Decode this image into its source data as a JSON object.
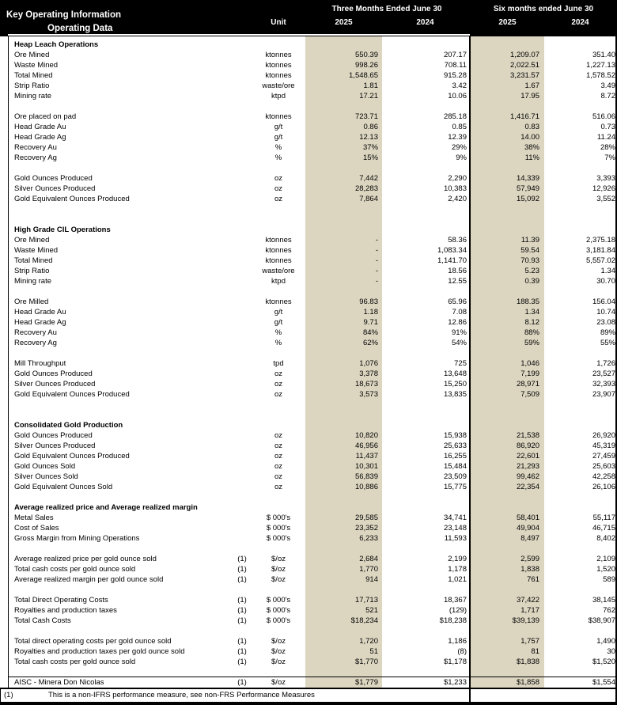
{
  "header": {
    "title": "Key Operating Information",
    "subtitle": "Operating Data",
    "unit_label": "Unit",
    "groups": [
      {
        "label": "Three Months Ended June 30",
        "years": [
          "2025",
          "2024"
        ]
      },
      {
        "label": "Six months ended June 30",
        "years": [
          "2025",
          "2024"
        ]
      }
    ]
  },
  "colors": {
    "header_bg": "#000000",
    "header_text": "#ffffff",
    "band": "#dcd6c1",
    "body_text": "#000000"
  },
  "columns": [
    "3m-2025",
    "3m-2024",
    "6m-2025",
    "6m-2024"
  ],
  "rows": [
    {
      "type": "section",
      "label": "Heap Leach Operations"
    },
    {
      "type": "data",
      "label": "Ore Mined",
      "unit": "ktonnes",
      "values": [
        "550.39",
        "207.17",
        "1,209.07",
        "351.40"
      ]
    },
    {
      "type": "data",
      "label": "Waste Mined",
      "unit": "ktonnes",
      "values": [
        "998.26",
        "708.11",
        "2,022.51",
        "1,227.13"
      ]
    },
    {
      "type": "data",
      "label": "Total Mined",
      "unit": "ktonnes",
      "values": [
        "1,548.65",
        "915.28",
        "3,231.57",
        "1,578.52"
      ]
    },
    {
      "type": "data",
      "label": "Strip Ratio",
      "unit": "waste/ore",
      "values": [
        "1.81",
        "3.42",
        "1.67",
        "3.49"
      ]
    },
    {
      "type": "data",
      "label": "Mining rate",
      "unit": "ktpd",
      "values": [
        "17.21",
        "10.06",
        "17.95",
        "8.72"
      ]
    },
    {
      "type": "blank"
    },
    {
      "type": "data",
      "label": "Ore placed on pad",
      "unit": "ktonnes",
      "values": [
        "723.71",
        "285.18",
        "1,416.71",
        "516.06"
      ]
    },
    {
      "type": "data",
      "label": "Head Grade Au",
      "unit": "g/t",
      "values": [
        "0.86",
        "0.85",
        "0.83",
        "0.73"
      ]
    },
    {
      "type": "data",
      "label": "Head Grade Ag",
      "unit": "g/t",
      "values": [
        "12.13",
        "12.39",
        "14.00",
        "11.24"
      ]
    },
    {
      "type": "data",
      "label": "Recovery Au",
      "unit": "%",
      "values": [
        "37%",
        "29%",
        "38%",
        "28%"
      ]
    },
    {
      "type": "data",
      "label": "Recovery Ag",
      "unit": "%",
      "values": [
        "15%",
        "9%",
        "11%",
        "7%"
      ]
    },
    {
      "type": "blank"
    },
    {
      "type": "data",
      "label": "Gold Ounces Produced",
      "unit": "oz",
      "values": [
        "7,442",
        "2,290",
        "14,339",
        "3,393"
      ]
    },
    {
      "type": "data",
      "label": "Silver Ounces Produced",
      "unit": "oz",
      "values": [
        "28,283",
        "10,383",
        "57,949",
        "12,926"
      ]
    },
    {
      "type": "data",
      "label": "Gold Equivalent Ounces Produced",
      "unit": "oz",
      "values": [
        "7,864",
        "2,420",
        "15,092",
        "3,552"
      ]
    },
    {
      "type": "blank"
    },
    {
      "type": "blank"
    },
    {
      "type": "section",
      "label": "High Grade CIL Operations"
    },
    {
      "type": "data",
      "label": "Ore Mined",
      "unit": "ktonnes",
      "values": [
        "-",
        "58.36",
        "11.39",
        "2,375.18"
      ]
    },
    {
      "type": "data",
      "label": "Waste Mined",
      "unit": "ktonnes",
      "values": [
        "-",
        "1,083.34",
        "59.54",
        "3,181.84"
      ]
    },
    {
      "type": "data",
      "label": "Total Mined",
      "unit": "ktonnes",
      "values": [
        "-",
        "1,141.70",
        "70.93",
        "5,557.02"
      ]
    },
    {
      "type": "data",
      "label": "Strip Ratio",
      "unit": "waste/ore",
      "values": [
        "-",
        "18.56",
        "5.23",
        "1.34"
      ]
    },
    {
      "type": "data",
      "label": "Mining rate",
      "unit": "ktpd",
      "values": [
        "-",
        "12.55",
        "0.39",
        "30.70"
      ]
    },
    {
      "type": "blank"
    },
    {
      "type": "data",
      "label": "Ore Milled",
      "unit": "ktonnes",
      "values": [
        "96.83",
        "65.96",
        "188.35",
        "156.04"
      ]
    },
    {
      "type": "data",
      "label": "Head Grade Au",
      "unit": "g/t",
      "values": [
        "1.18",
        "7.08",
        "1.34",
        "10.74"
      ]
    },
    {
      "type": "data",
      "label": "Head Grade Ag",
      "unit": "g/t",
      "values": [
        "9.71",
        "12.86",
        "8.12",
        "23.08"
      ]
    },
    {
      "type": "data",
      "label": "Recovery Au",
      "unit": "%",
      "values": [
        "84%",
        "91%",
        "88%",
        "89%"
      ]
    },
    {
      "type": "data",
      "label": "Recovery Ag",
      "unit": "%",
      "values": [
        "62%",
        "54%",
        "59%",
        "55%"
      ]
    },
    {
      "type": "blank"
    },
    {
      "type": "data",
      "label": "Mill Throughput",
      "unit": "tpd",
      "values": [
        "1,076",
        "725",
        "1,046",
        "1,726"
      ]
    },
    {
      "type": "data",
      "label": "Gold Ounces Produced",
      "unit": "oz",
      "values": [
        "3,378",
        "13,648",
        "7,199",
        "23,527"
      ]
    },
    {
      "type": "data",
      "label": "Silver Ounces Produced",
      "unit": "oz",
      "values": [
        "18,673",
        "15,250",
        "28,971",
        "32,393"
      ]
    },
    {
      "type": "data",
      "label": "Gold Equivalent Ounces Produced",
      "unit": "oz",
      "values": [
        "3,573",
        "13,835",
        "7,509",
        "23,907"
      ]
    },
    {
      "type": "blank"
    },
    {
      "type": "blank"
    },
    {
      "type": "section",
      "label": "Consolidated Gold Production"
    },
    {
      "type": "data",
      "label": "Gold Ounces Produced",
      "unit": "oz",
      "values": [
        "10,820",
        "15,938",
        "21,538",
        "26,920"
      ]
    },
    {
      "type": "data",
      "label": "Silver Ounces Produced",
      "unit": "oz",
      "values": [
        "46,956",
        "25,633",
        "86,920",
        "45,319"
      ]
    },
    {
      "type": "data",
      "label": "Gold Equivalent Ounces Produced",
      "unit": "oz",
      "values": [
        "11,437",
        "16,255",
        "22,601",
        "27,459"
      ]
    },
    {
      "type": "data",
      "label": "Gold Ounces Sold",
      "unit": "oz",
      "values": [
        "10,301",
        "15,484",
        "21,293",
        "25,603"
      ]
    },
    {
      "type": "data",
      "label": "Silver Ounces Sold",
      "unit": "oz",
      "values": [
        "56,839",
        "23,509",
        "99,462",
        "42,258"
      ]
    },
    {
      "type": "data",
      "label": "Gold Equivalent Ounces Sold",
      "unit": "oz",
      "values": [
        "10,886",
        "15,775",
        "22,354",
        "26,106"
      ]
    },
    {
      "type": "blank"
    },
    {
      "type": "section",
      "label": "Average realized price and Average realized margin"
    },
    {
      "type": "data",
      "label": "Metal Sales",
      "unit": "$ 000's",
      "values": [
        "29,585",
        "34,741",
        "58,401",
        "55,117"
      ]
    },
    {
      "type": "data",
      "label": "Cost of Sales",
      "unit": "$ 000's",
      "values": [
        "23,352",
        "23,148",
        "49,904",
        "46,715"
      ]
    },
    {
      "type": "data",
      "label": "Gross Margin from Mining Operations",
      "unit": "$ 000's",
      "values": [
        "6,233",
        "11,593",
        "8,497",
        "8,402"
      ]
    },
    {
      "type": "blank"
    },
    {
      "type": "data",
      "label": "Average realized price per gold ounce sold",
      "ref": "(1)",
      "unit": "$/oz",
      "values": [
        "2,684",
        "2,199",
        "2,599",
        "2,109"
      ]
    },
    {
      "type": "data",
      "label": "Total cash costs per gold ounce sold",
      "ref": "(1)",
      "unit": "$/oz",
      "values": [
        "1,770",
        "1,178",
        "1,838",
        "1,520"
      ]
    },
    {
      "type": "data",
      "label": "Average realized margin per gold ounce sold",
      "ref": "(1)",
      "unit": "$/oz",
      "values": [
        "914",
        "1,021",
        "761",
        "589"
      ]
    },
    {
      "type": "blank"
    },
    {
      "type": "data",
      "label": "Total Direct Operating Costs",
      "ref": "(1)",
      "unit": "$ 000's",
      "values": [
        "17,713",
        "18,367",
        "37,422",
        "38,145"
      ]
    },
    {
      "type": "data",
      "label": "Royalties and production taxes",
      "ref": "(1)",
      "unit": "$ 000's",
      "values": [
        "521",
        "(129)",
        "1,717",
        "762"
      ]
    },
    {
      "type": "data",
      "label": "Total Cash Costs",
      "ref": "(1)",
      "unit": "$ 000's",
      "values": [
        "$18,234",
        "$18,238",
        "$39,139",
        "$38,907"
      ]
    },
    {
      "type": "blank"
    },
    {
      "type": "data",
      "label": "Total direct operating costs per gold ounce sold",
      "ref": "(1)",
      "unit": "$/oz",
      "values": [
        "1,720",
        "1,186",
        "1,757",
        "1,490"
      ]
    },
    {
      "type": "data",
      "label": "Royalties and production taxes per gold ounce sold",
      "ref": "(1)",
      "unit": "$/oz",
      "values": [
        "51",
        "(8)",
        "81",
        "30"
      ]
    },
    {
      "type": "data",
      "label": "Total cash costs per gold ounce sold",
      "ref": "(1)",
      "unit": "$/oz",
      "values": [
        "$1,770",
        "$1,178",
        "$1,838",
        "$1,520"
      ]
    },
    {
      "type": "blank"
    },
    {
      "type": "data",
      "label": "AISC - Minera Don Nicolas",
      "ref": "(1)",
      "unit": "$/oz",
      "values": [
        "$1,779",
        "$1,233",
        "$1,858",
        "$1,554"
      ],
      "topline": true
    }
  ],
  "footnote": {
    "ref": "(1)",
    "text": "This is a non-IFRS performance measure, see non-FRS Performance Measures"
  }
}
